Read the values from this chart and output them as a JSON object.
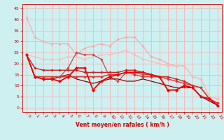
{
  "title": "Vent moyen/en rafales ( km/h )",
  "background_color": "#cef0f0",
  "grid_color": "#ffaaaa",
  "x_ticks": [
    0,
    1,
    2,
    3,
    4,
    5,
    6,
    7,
    8,
    9,
    10,
    11,
    12,
    13,
    14,
    15,
    16,
    17,
    18,
    19,
    20,
    21,
    22,
    23
  ],
  "y_ticks": [
    0,
    5,
    10,
    15,
    20,
    25,
    30,
    35,
    40,
    45
  ],
  "ylim": [
    -2,
    47
  ],
  "xlim": [
    -0.5,
    23.5
  ],
  "lines": [
    {
      "y": [
        41,
        32,
        30,
        29,
        29,
        29,
        24,
        27,
        28,
        29,
        28,
        31,
        32,
        32,
        28,
        23,
        22,
        20,
        19,
        19,
        14,
        13,
        5,
        4
      ],
      "color": "#ffaaaa",
      "linewidth": 0.9,
      "marker": "D",
      "markersize": 1.8,
      "zorder": 2
    },
    {
      "y": [
        24,
        23,
        22,
        22,
        22,
        23,
        23,
        22,
        23,
        24,
        24,
        25,
        26,
        24,
        22,
        21,
        20,
        19,
        19,
        19,
        14,
        13,
        5,
        4
      ],
      "color": "#ffbbbb",
      "linewidth": 0.9,
      "marker": "D",
      "markersize": 1.8,
      "zorder": 2
    },
    {
      "y": [
        24,
        18,
        17,
        17,
        17,
        17,
        17,
        16,
        16,
        16,
        16,
        16,
        17,
        17,
        16,
        15,
        14,
        14,
        13,
        12,
        10,
        9,
        4,
        2
      ],
      "color": "#cc2222",
      "linewidth": 1.0,
      "marker": "D",
      "markersize": 1.8,
      "zorder": 4
    },
    {
      "y": [
        24,
        14,
        14,
        14,
        14,
        14,
        14,
        14,
        14,
        14,
        15,
        15,
        16,
        15,
        14,
        14,
        14,
        13,
        12,
        11,
        10,
        9,
        4,
        2
      ],
      "color": "#dd3333",
      "linewidth": 1.0,
      "marker": "D",
      "markersize": 1.8,
      "zorder": 4
    },
    {
      "y": [
        24,
        14,
        13,
        13,
        12,
        14,
        18,
        18,
        8,
        12,
        14,
        15,
        16,
        16,
        16,
        15,
        14,
        8,
        8,
        10,
        9,
        5,
        4,
        1
      ],
      "color": "#ee0000",
      "linewidth": 1.3,
      "marker": "D",
      "markersize": 2.2,
      "zorder": 5
    },
    {
      "y": [
        24,
        14,
        13,
        13,
        14,
        18,
        25,
        24,
        24,
        22,
        14,
        12,
        16,
        16,
        15,
        15,
        14,
        8,
        8,
        10,
        9,
        5,
        4,
        1
      ],
      "color": "#cc4444",
      "linewidth": 0.9,
      "marker": "D",
      "markersize": 1.8,
      "zorder": 3
    },
    {
      "y": [
        24,
        14,
        13,
        13,
        14,
        15,
        13,
        12,
        11,
        12,
        13,
        13,
        12,
        12,
        13,
        12,
        11,
        10,
        9,
        9,
        9,
        5,
        3,
        1
      ],
      "color": "#880000",
      "linewidth": 0.9,
      "marker": null,
      "markersize": 0,
      "zorder": 3
    }
  ]
}
